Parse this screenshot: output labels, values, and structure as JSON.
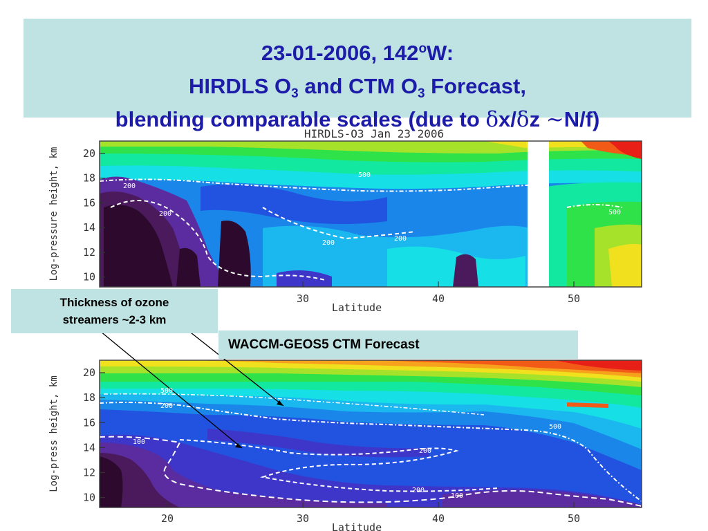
{
  "slide": {
    "title_line1": "23-01-2006, 142",
    "title_line1_sup": "o",
    "title_line1_end": "W:",
    "title_line2_a": "HIRDLS O",
    "title_line2_sub1": "3",
    "title_line2_b": " and CTM O",
    "title_line2_sub2": "3",
    "title_line2_c": " Forecast,",
    "title_line3_a": "blending comparable scales (due to ",
    "title_line3_delta1": "δ",
    "title_line3_b": "x/",
    "title_line3_delta2": "δ",
    "title_line3_c": "z ",
    "title_line3_tilde": "~",
    "title_line3_d": "N/f)"
  },
  "callouts": {
    "thickness_line1": "Thickness of ozone",
    "thickness_line2": "streamers ~2-3 km",
    "waccm": "WACCM-GEOS5 CTM Forecast"
  },
  "colors": {
    "title_text": "#1c1ca8",
    "box_bg": "#bfe3e3",
    "scale": [
      "#2d0a2d",
      "#4a1a5c",
      "#5a2ca0",
      "#3d36c9",
      "#2253e0",
      "#1a86ea",
      "#1ab8ef",
      "#16dfe5",
      "#12e8a0",
      "#2fe24a",
      "#a6e22a",
      "#f0e01e",
      "#f6a21c",
      "#f25a18",
      "#e81f17"
    ]
  },
  "chart_data": [
    {
      "type": "heatmap",
      "title": "HIRDLS-O3 Jan 23 2006",
      "xlabel": "Latitude",
      "ylabel": "Log-pressure height, km",
      "xlim": [
        15,
        55
      ],
      "ylim": [
        9.2,
        21
      ],
      "x_ticks": [
        30,
        40,
        50
      ],
      "y_ticks": [
        10,
        12,
        14,
        16,
        18,
        20
      ],
      "contour_labels": [
        "200",
        "500",
        "200",
        "200",
        "200",
        "500"
      ],
      "missing_data_band": [
        46.3,
        47.9
      ],
      "grid": false
    },
    {
      "type": "heatmap",
      "title": "",
      "xlabel": "Latitude",
      "ylabel": "Log-press  height, km",
      "xlim": [
        15,
        55
      ],
      "ylim": [
        9.2,
        21
      ],
      "x_ticks": [
        20,
        30,
        40,
        50
      ],
      "y_ticks": [
        10,
        12,
        14,
        16,
        18,
        20
      ],
      "contour_labels": [
        "500",
        "200",
        "100",
        "200",
        "500",
        "200",
        "100"
      ],
      "grid": false
    }
  ]
}
